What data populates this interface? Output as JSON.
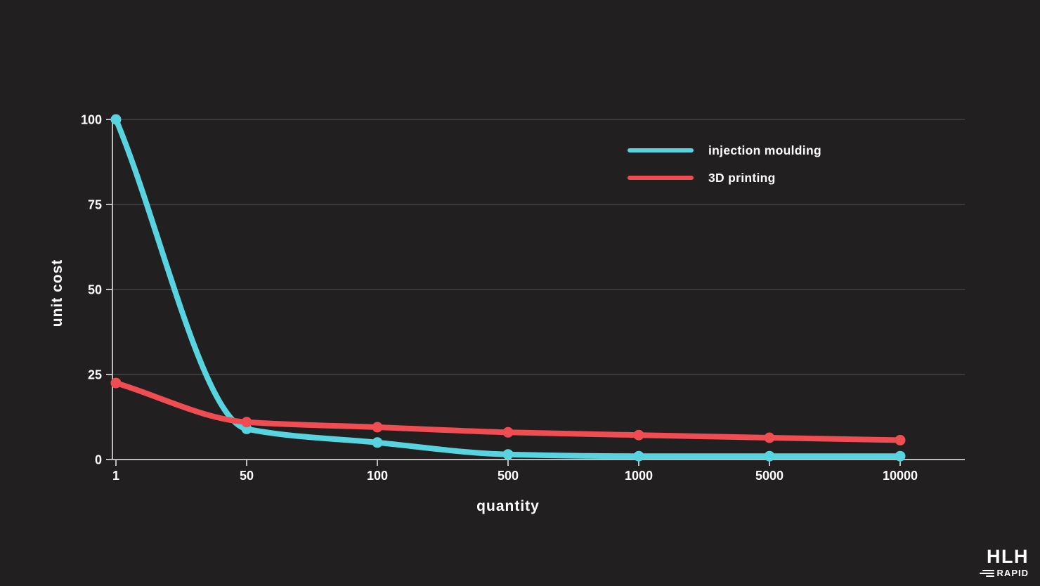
{
  "page": {
    "background": "#221f20"
  },
  "chart_data": {
    "type": "line",
    "title": "",
    "xlabel": "quantity",
    "ylabel": "unit cost",
    "x": [
      1,
      50,
      100,
      500,
      1000,
      5000,
      10000
    ],
    "x_tick_labels": [
      "1",
      "50",
      "100",
      "500",
      "1000",
      "5000",
      "10000"
    ],
    "y_ticks": [
      0,
      25,
      50,
      75,
      100
    ],
    "ylim": [
      0,
      100
    ],
    "x_scale": "categorical-even-spacing",
    "grid": "horizontal",
    "legend_position": "top-right-inside",
    "axis_color": "#bdbbbb",
    "grid_color": "#454243",
    "text_color": "#ffffff",
    "series": [
      {
        "name": "injection moulding",
        "color": "#57d4df",
        "values": [
          100,
          9,
          5,
          1.5,
          1,
          1,
          1
        ]
      },
      {
        "name": "3D printing",
        "color": "#ef4d52",
        "values": [
          22.5,
          11,
          9.5,
          8,
          7.2,
          6.4,
          5.7
        ]
      }
    ]
  },
  "logo": {
    "line1": "HLH",
    "line2": "RAPID"
  }
}
